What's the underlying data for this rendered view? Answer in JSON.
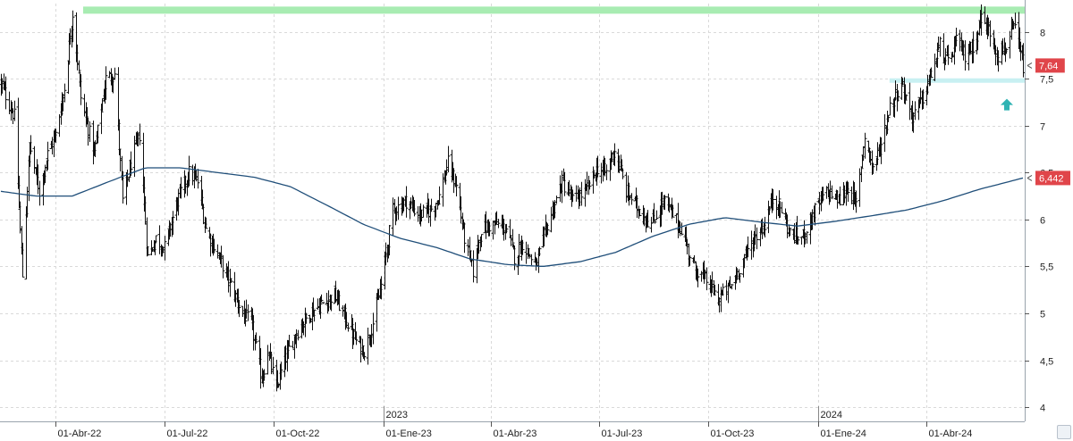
{
  "chart_data": {
    "type": "ohlc",
    "y_axis": {
      "ticks": [
        "8",
        "7,5",
        "7",
        "6,5",
        "6",
        "5,5",
        "5",
        "4,5",
        "4"
      ],
      "tick_values": [
        8,
        7.5,
        7,
        6.5,
        6,
        5.5,
        5,
        4.5,
        4
      ],
      "ylim": [
        3.85,
        8.3
      ],
      "position": "right"
    },
    "x_axis": {
      "labels": [
        "01-Abr-22",
        "01-Jul-22",
        "01-Oct-22",
        "01-Ene-23",
        "01-Abr-23",
        "01-Jul-23",
        "01-Oct-23",
        "01-Ene-24",
        "01-Abr-24"
      ],
      "year_labels": [
        "2023",
        "2024"
      ],
      "start": "2022-02-14",
      "end": "2024-06-21"
    },
    "price_anchors": [
      [
        "2022-02-14",
        7.45
      ],
      [
        "2022-02-25",
        7.1
      ],
      [
        "2022-03-04",
        5.4
      ],
      [
        "2022-03-10",
        6.8
      ],
      [
        "2022-03-18",
        6.3
      ],
      [
        "2022-03-25",
        6.7
      ],
      [
        "2022-04-01",
        6.9
      ],
      [
        "2022-04-08",
        7.4
      ],
      [
        "2022-04-15",
        8.2
      ],
      [
        "2022-04-22",
        7.3
      ],
      [
        "2022-05-03",
        6.7
      ],
      [
        "2022-05-13",
        7.5
      ],
      [
        "2022-05-20",
        7.55
      ],
      [
        "2022-05-27",
        6.2
      ],
      [
        "2022-06-03",
        6.6
      ],
      [
        "2022-06-10",
        6.9
      ],
      [
        "2022-06-17",
        5.6
      ],
      [
        "2022-06-24",
        5.8
      ],
      [
        "2022-07-01",
        5.7
      ],
      [
        "2022-07-12",
        6.2
      ],
      [
        "2022-07-22",
        6.5
      ],
      [
        "2022-07-29",
        6.4
      ],
      [
        "2022-08-05",
        5.9
      ],
      [
        "2022-08-16",
        5.6
      ],
      [
        "2022-08-26",
        5.3
      ],
      [
        "2022-09-05",
        5.0
      ],
      [
        "2022-09-12",
        4.9
      ],
      [
        "2022-09-21",
        4.3
      ],
      [
        "2022-09-26",
        4.6
      ],
      [
        "2022-10-03",
        4.2
      ],
      [
        "2022-10-10",
        4.5
      ],
      [
        "2022-10-20",
        4.8
      ],
      [
        "2022-10-31",
        5.0
      ],
      [
        "2022-11-10",
        5.1
      ],
      [
        "2022-11-21",
        5.2
      ],
      [
        "2022-11-30",
        4.95
      ],
      [
        "2022-12-09",
        4.7
      ],
      [
        "2022-12-16",
        4.6
      ],
      [
        "2022-12-23",
        4.9
      ],
      [
        "2022-12-30",
        5.3
      ],
      [
        "2023-01-09",
        6.1
      ],
      [
        "2023-01-20",
        6.2
      ],
      [
        "2023-01-31",
        6.05
      ],
      [
        "2023-02-09",
        6.1
      ],
      [
        "2023-02-17",
        6.25
      ],
      [
        "2023-02-24",
        6.6
      ],
      [
        "2023-03-03",
        6.35
      ],
      [
        "2023-03-10",
        5.8
      ],
      [
        "2023-03-17",
        5.45
      ],
      [
        "2023-03-24",
        5.9
      ],
      [
        "2023-04-05",
        5.95
      ],
      [
        "2023-04-14",
        5.9
      ],
      [
        "2023-04-21",
        5.6
      ],
      [
        "2023-04-28",
        5.75
      ],
      [
        "2023-05-09",
        5.5
      ],
      [
        "2023-05-19",
        5.95
      ],
      [
        "2023-05-31",
        6.4
      ],
      [
        "2023-06-09",
        6.2
      ],
      [
        "2023-06-20",
        6.3
      ],
      [
        "2023-06-30",
        6.55
      ],
      [
        "2023-07-07",
        6.5
      ],
      [
        "2023-07-14",
        6.75
      ],
      [
        "2023-07-24",
        6.3
      ],
      [
        "2023-08-04",
        6.1
      ],
      [
        "2023-08-14",
        5.95
      ],
      [
        "2023-08-24",
        6.2
      ],
      [
        "2023-09-01",
        6.05
      ],
      [
        "2023-09-08",
        5.9
      ],
      [
        "2023-09-18",
        5.5
      ],
      [
        "2023-09-29",
        5.35
      ],
      [
        "2023-10-09",
        5.15
      ],
      [
        "2023-10-20",
        5.3
      ],
      [
        "2023-10-31",
        5.6
      ],
      [
        "2023-11-08",
        5.8
      ],
      [
        "2023-11-17",
        5.95
      ],
      [
        "2023-11-24",
        6.25
      ],
      [
        "2023-12-01",
        6.1
      ],
      [
        "2023-12-08",
        5.85
      ],
      [
        "2023-12-18",
        5.8
      ],
      [
        "2023-12-29",
        6.1
      ],
      [
        "2024-01-09",
        6.3
      ],
      [
        "2024-01-19",
        6.2
      ],
      [
        "2024-01-26",
        6.35
      ],
      [
        "2024-02-02",
        6.15
      ],
      [
        "2024-02-09",
        6.9
      ],
      [
        "2024-02-16",
        6.55
      ],
      [
        "2024-02-23",
        6.8
      ],
      [
        "2024-03-01",
        7.2
      ],
      [
        "2024-03-11",
        7.45
      ],
      [
        "2024-03-20",
        7.1
      ],
      [
        "2024-03-29",
        7.3
      ],
      [
        "2024-04-05",
        7.55
      ],
      [
        "2024-04-12",
        7.85
      ],
      [
        "2024-04-19",
        7.65
      ],
      [
        "2024-04-26",
        7.9
      ],
      [
        "2024-05-03",
        7.75
      ],
      [
        "2024-05-10",
        7.85
      ],
      [
        "2024-05-17",
        8.15
      ],
      [
        "2024-05-24",
        8.0
      ],
      [
        "2024-05-31",
        7.75
      ],
      [
        "2024-06-07",
        7.85
      ],
      [
        "2024-06-14",
        8.05
      ],
      [
        "2024-06-19",
        7.75
      ],
      [
        "2024-06-21",
        7.64
      ]
    ],
    "moving_average": {
      "anchors": [
        [
          "2022-02-14",
          6.3
        ],
        [
          "2022-03-15",
          6.25
        ],
        [
          "2022-04-15",
          6.25
        ],
        [
          "2022-05-15",
          6.4
        ],
        [
          "2022-06-15",
          6.55
        ],
        [
          "2022-07-15",
          6.55
        ],
        [
          "2022-08-15",
          6.5
        ],
        [
          "2022-09-15",
          6.45
        ],
        [
          "2022-10-15",
          6.35
        ],
        [
          "2022-11-15",
          6.15
        ],
        [
          "2022-12-15",
          5.95
        ],
        [
          "2023-01-15",
          5.8
        ],
        [
          "2023-02-15",
          5.7
        ],
        [
          "2023-03-15",
          5.58
        ],
        [
          "2023-04-15",
          5.52
        ],
        [
          "2023-05-15",
          5.5
        ],
        [
          "2023-06-15",
          5.55
        ],
        [
          "2023-07-15",
          5.65
        ],
        [
          "2023-08-15",
          5.82
        ],
        [
          "2023-09-15",
          5.95
        ],
        [
          "2023-10-15",
          6.02
        ],
        [
          "2023-11-15",
          5.97
        ],
        [
          "2023-12-15",
          5.93
        ],
        [
          "2024-01-15",
          5.98
        ],
        [
          "2024-02-15",
          6.04
        ],
        [
          "2024-03-15",
          6.1
        ],
        [
          "2024-04-15",
          6.2
        ],
        [
          "2024-05-15",
          6.32
        ],
        [
          "2024-06-21",
          6.442
        ]
      ],
      "color": "#1f4e79"
    },
    "resistance_line": {
      "value": 8.23,
      "color": "#a8ecb2"
    },
    "support_line": {
      "value": 7.48,
      "from": "2024-03-01",
      "color": "#c8f0f2"
    },
    "last_price_label": "7,64",
    "ma_value_label": "6,442",
    "label_color": "#e0454a",
    "arrow_color": "#2fb3b3",
    "grid": true,
    "legend": "none"
  }
}
